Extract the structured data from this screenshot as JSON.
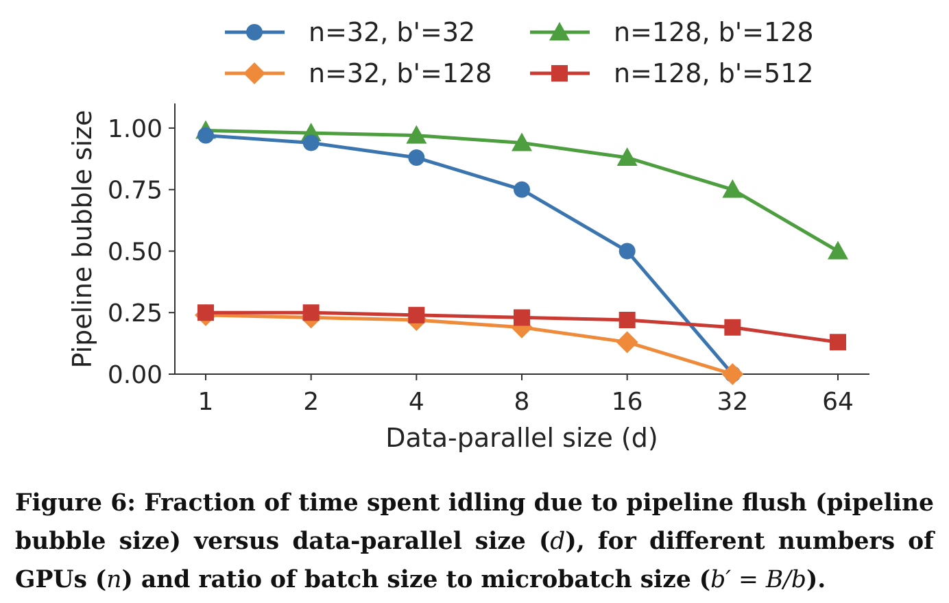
{
  "chart_data": {
    "type": "line",
    "title": "",
    "xlabel": "Data-parallel size (d)",
    "ylabel": "Pipeline bubble size",
    "x": [
      1,
      2,
      4,
      8,
      16,
      32,
      64
    ],
    "x_tick_labels": [
      "1",
      "2",
      "4",
      "8",
      "16",
      "32",
      "64"
    ],
    "x_scale": "log2",
    "ylim": [
      0,
      1.1
    ],
    "y_ticks": [
      0.0,
      0.25,
      0.5,
      0.75,
      1.0
    ],
    "y_tick_labels": [
      "0.00",
      "0.25",
      "0.50",
      "0.75",
      "1.00"
    ],
    "grid": false,
    "legend_position": "top",
    "series": [
      {
        "name": "n=32, b'=32",
        "color": "#3a75b0",
        "marker": "circle",
        "values": [
          0.97,
          0.94,
          0.88,
          0.75,
          0.5,
          0.0,
          null
        ]
      },
      {
        "name": "n=32, b'=128",
        "color": "#ef8a3a",
        "marker": "diamond",
        "values": [
          0.24,
          0.23,
          0.22,
          0.19,
          0.13,
          0.0,
          null
        ]
      },
      {
        "name": "n=128, b'=128",
        "color": "#4c9e3f",
        "marker": "triangle",
        "values": [
          0.99,
          0.98,
          0.97,
          0.94,
          0.88,
          0.75,
          0.5
        ]
      },
      {
        "name": "n=128, b'=512",
        "color": "#c93a33",
        "marker": "square",
        "values": [
          0.25,
          0.25,
          0.24,
          0.23,
          0.22,
          0.19,
          0.13
        ]
      }
    ]
  },
  "caption": {
    "label": "Figure 6:",
    "text_1": " Fraction of time spent idling due to pipeline flush (pipeline bubble size) versus data-parallel size (",
    "var_d": "d",
    "text_2": "), for different numbers of GPUs (",
    "var_n": "n",
    "text_3": ") and ratio of batch size to microbatch size (",
    "formula": "b′ = B/b",
    "text_4": ")."
  }
}
